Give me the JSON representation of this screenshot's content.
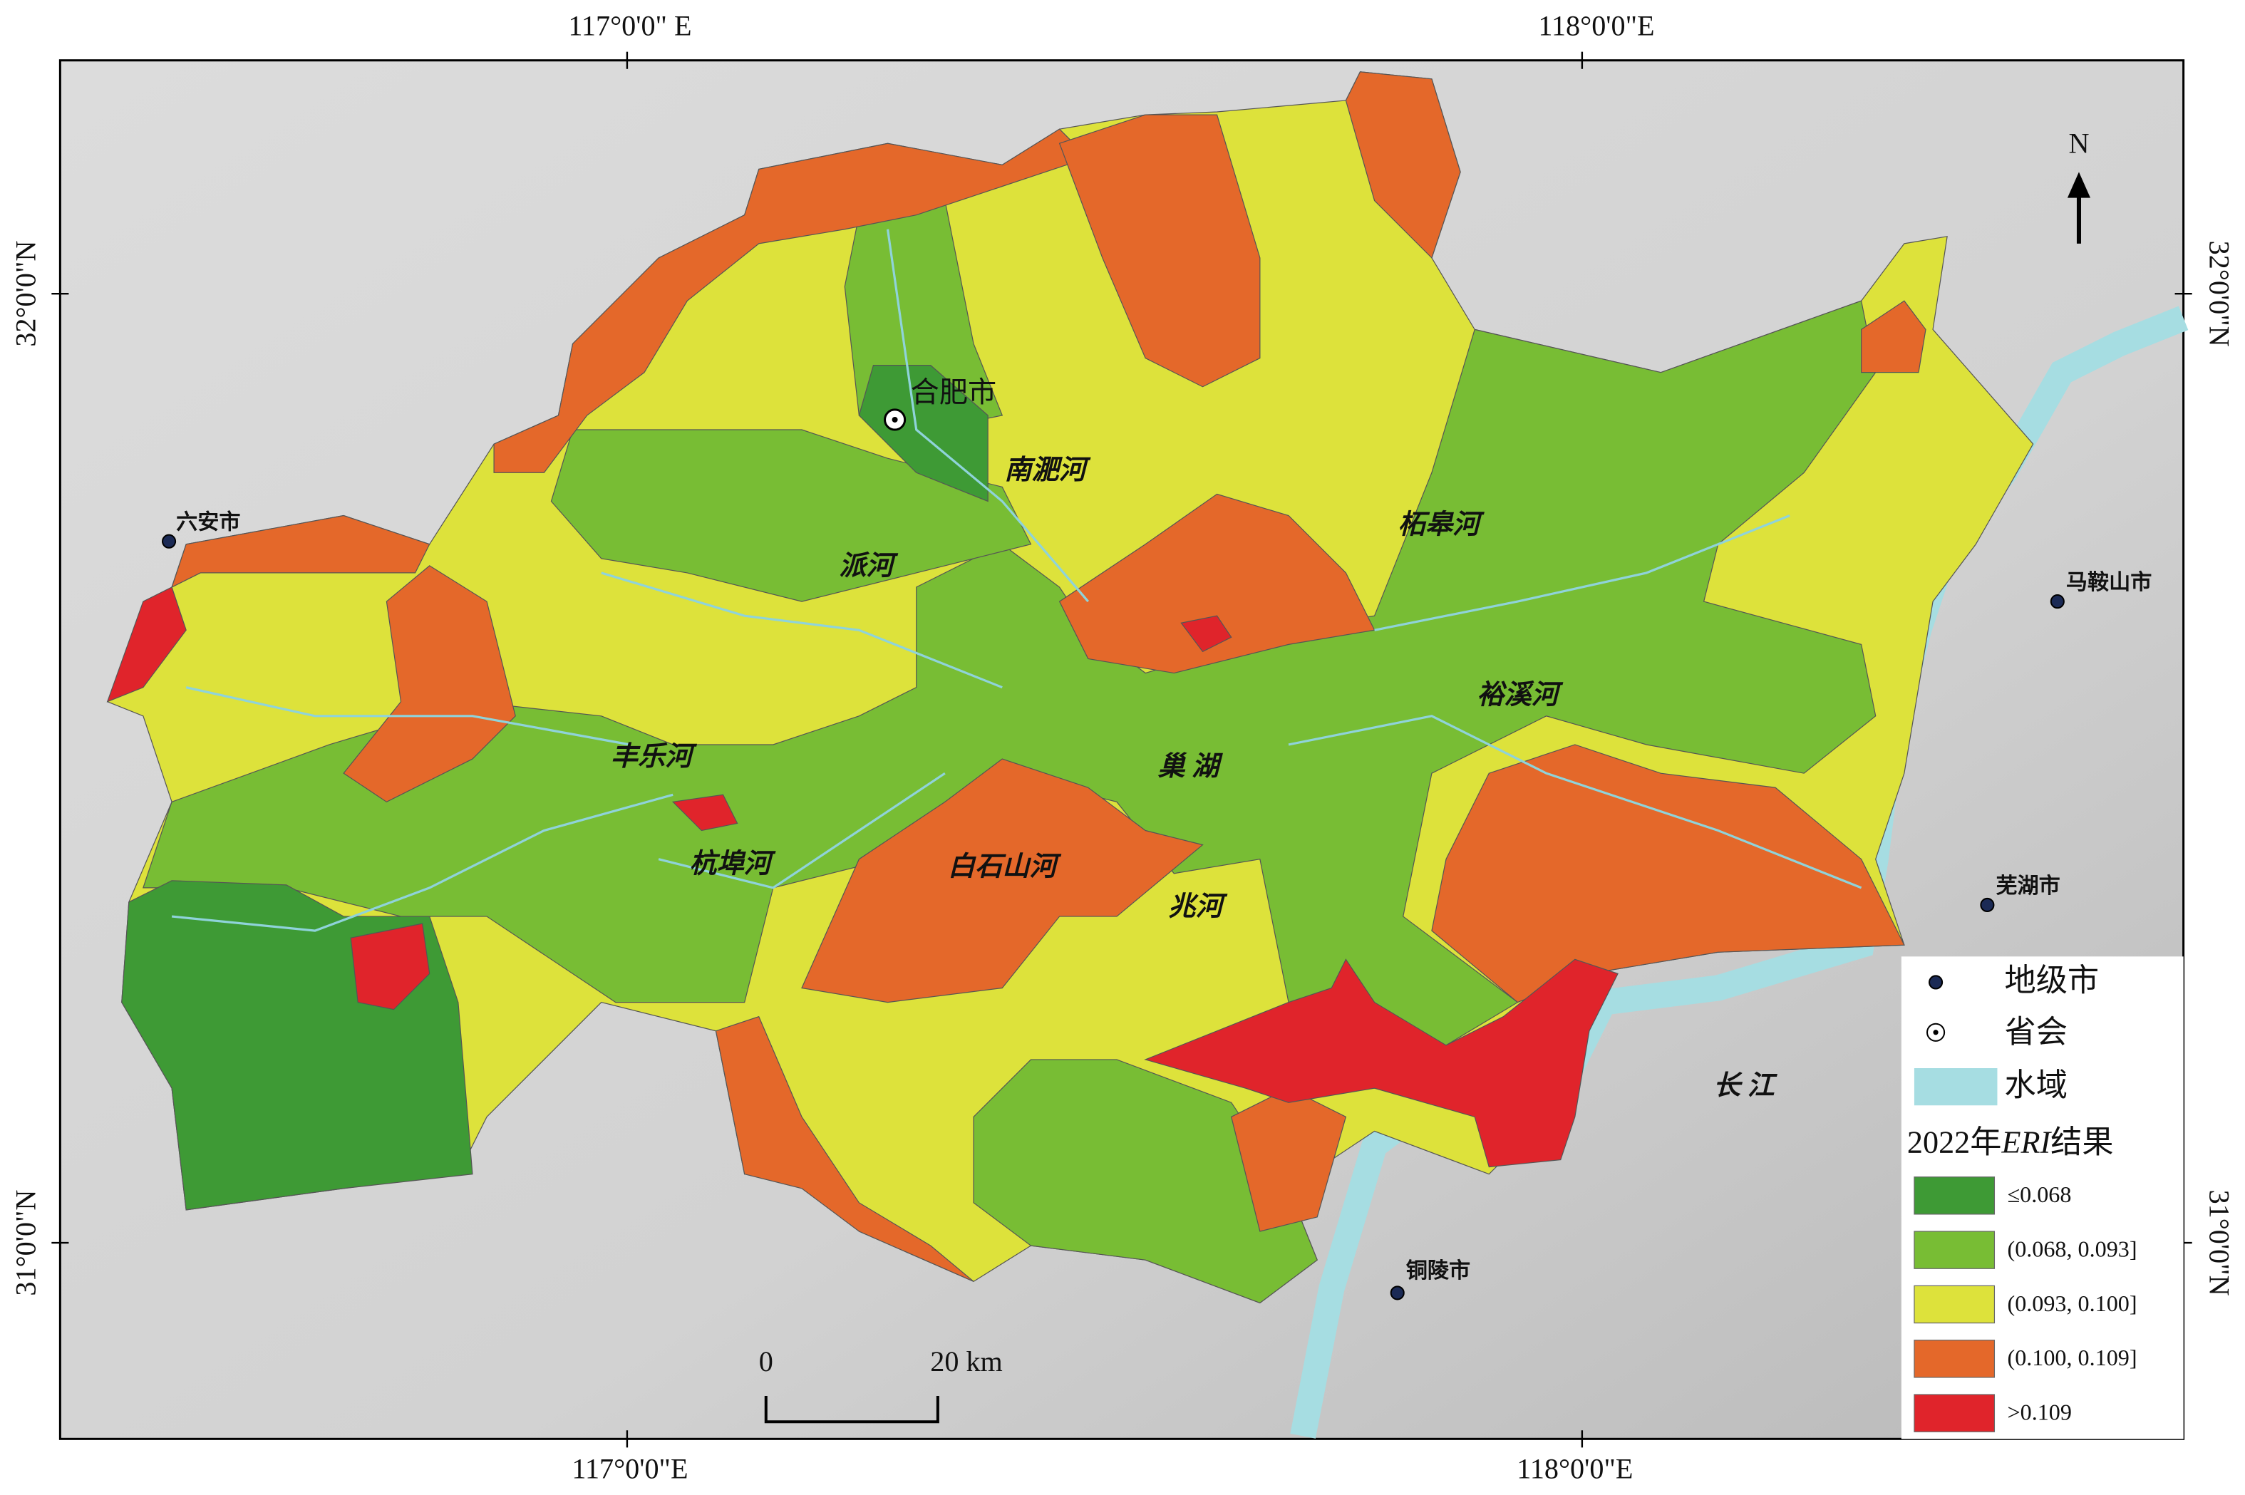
{
  "map": {
    "graticule": {
      "top": [
        "117°0'0\" E",
        "118°0'0\"E"
      ],
      "bottom": [
        "117°0'0\"E",
        "118°0'0\"E"
      ],
      "left": [
        "32°0'0\"N",
        "31°0'0\"N"
      ],
      "right": [
        "32°0'0\"N",
        "31°0'0\"N"
      ]
    },
    "north": "N",
    "cities": [
      "合肥市",
      "六安市",
      "马鞍山市",
      "芜湖市",
      "铜陵市"
    ],
    "water_labels": [
      "南淝河",
      "派河",
      "柘皋河",
      "裕溪河",
      "巢 湖",
      "丰乐河",
      "杭埠河",
      "白石山河",
      "兆河",
      "长 江"
    ],
    "scale_bar": [
      "0",
      "20 km"
    ],
    "legend": {
      "symbols": [
        "地级市",
        "省会",
        "水域"
      ],
      "title": [
        "2022年",
        "ERI",
        "结果"
      ],
      "classes": [
        {
          "label": "≤0.068",
          "color": "#3e9a35"
        },
        {
          "label": "(0.068, 0.093]",
          "color": "#78bd34"
        },
        {
          "label": "(0.093, 0.100]",
          "color": "#dde23b"
        },
        {
          "label": "(0.100, 0.109]",
          "color": "#e4682a"
        },
        {
          "label": ">0.109",
          "color": "#e0242b"
        }
      ]
    }
  }
}
